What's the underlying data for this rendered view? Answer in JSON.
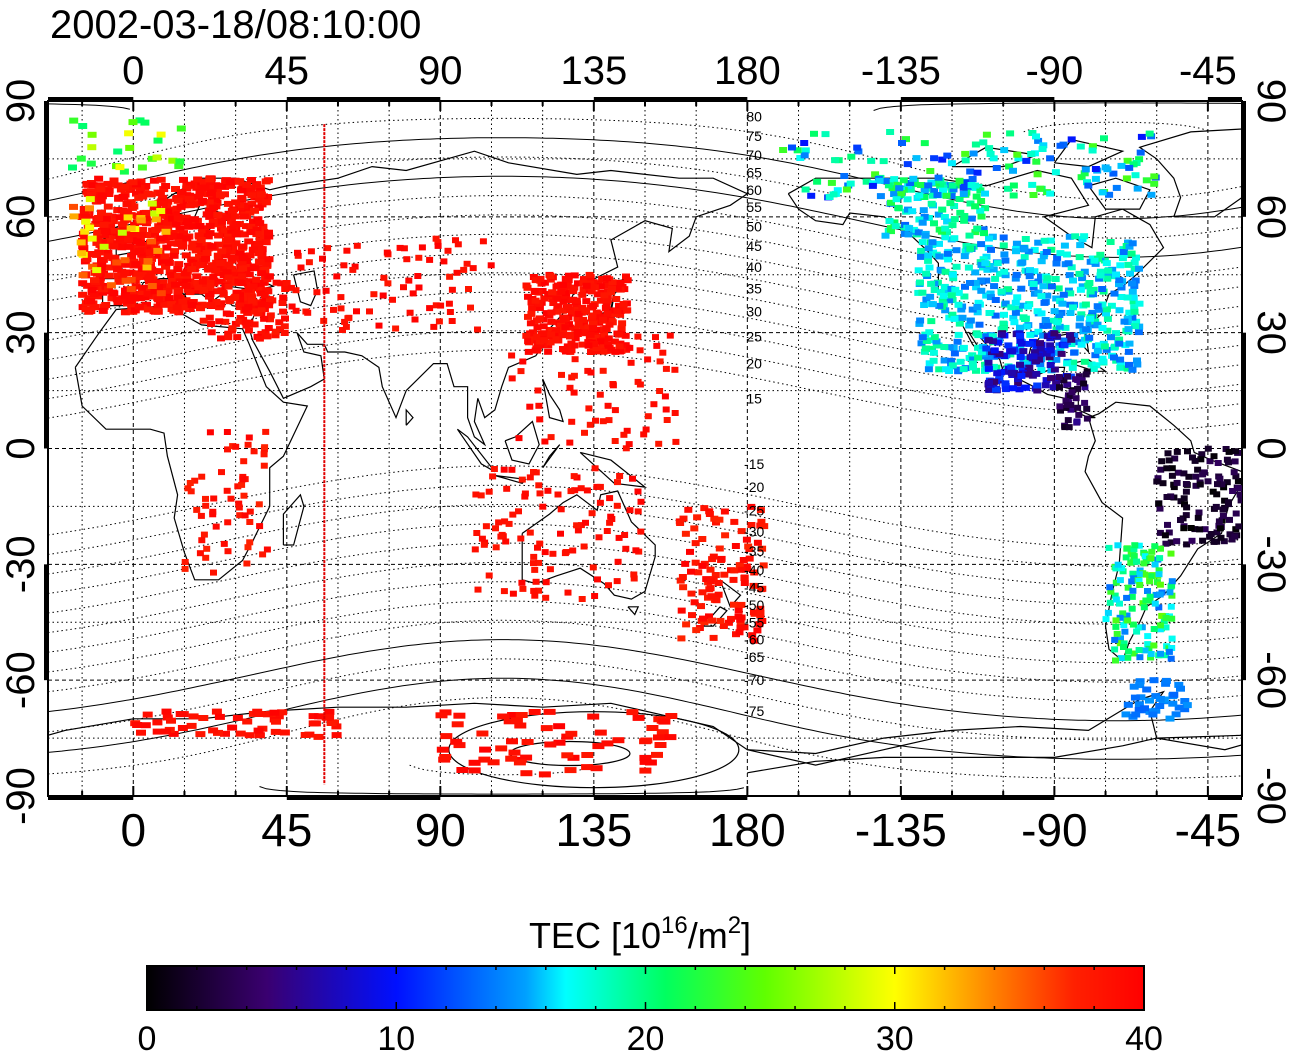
{
  "title": "2002-03-18/08:10:00",
  "map": {
    "top_lon_labels": [
      "0",
      "45",
      "90",
      "135",
      "180",
      "-135",
      "-90",
      "-45"
    ],
    "bottom_lon_labels": [
      "0",
      "45",
      "90",
      "135",
      "180",
      "-135",
      "-90",
      "-45"
    ],
    "left_lat_labels": [
      "90",
      "60",
      "30",
      "0",
      "-30",
      "-60",
      "-90"
    ],
    "right_lat_labels": [
      "90",
      "60",
      "30",
      "0",
      "-30",
      "-60",
      "-90"
    ],
    "lon_range": [
      -25,
      325
    ],
    "lat_range": [
      -90,
      90
    ],
    "terminator_lon": 56,
    "contour_labels": [
      "80",
      "75",
      "70",
      "65",
      "60",
      "55",
      "50",
      "45",
      "40",
      "35",
      "30",
      "25",
      "20",
      "15",
      "-15",
      "-20",
      "-25",
      "-30",
      "-35",
      "-40",
      "-45",
      "-50",
      "-55",
      "-60",
      "-65",
      "-70",
      "-75"
    ]
  },
  "colorbar": {
    "title_prefix": "TEC  [10",
    "title_exp": "16",
    "title_mid": "/m",
    "title_exp2": "2",
    "title_suffix": "]",
    "tick_labels": [
      "0",
      "10",
      "20",
      "30",
      "40"
    ],
    "min": 0,
    "max": 40
  },
  "colors": {
    "high_tec": "#ff1a1a",
    "mid_tec": "#20d0ff",
    "low_tec": "#2a0060"
  }
}
